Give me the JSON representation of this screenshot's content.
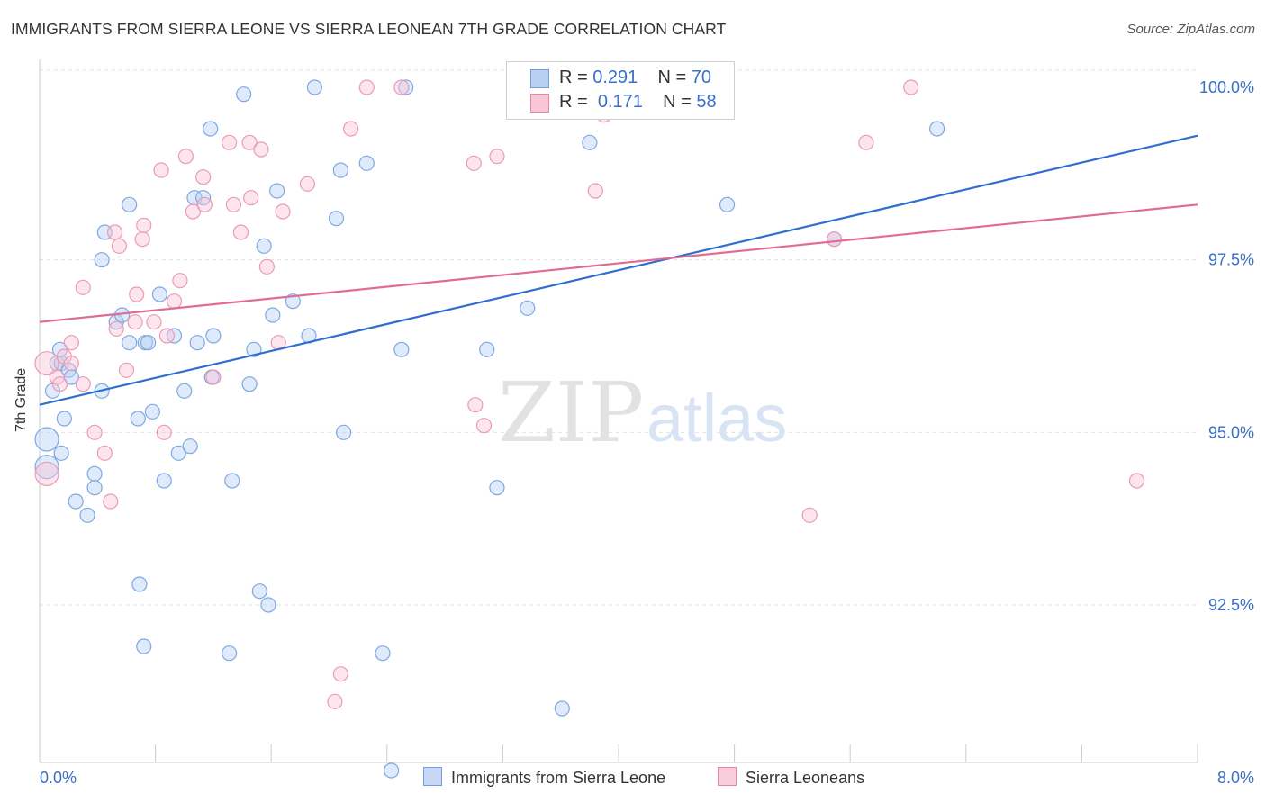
{
  "title": "IMMIGRANTS FROM SIERRA LEONE VS SIERRA LEONEAN 7TH GRADE CORRELATION CHART",
  "source": "Source: ZipAtlas.com",
  "watermark": {
    "part1": "ZIP",
    "part2": "atlas"
  },
  "legend": {
    "r_label": "R =",
    "n_label": "N =",
    "rows": [
      {
        "r": "0.291",
        "n": "70",
        "color": "#6f9fe0",
        "fill": "#b9d0f3"
      },
      {
        "r": "0.171",
        "n": "58",
        "color": "#e685a6",
        "fill": "#f8c6d6"
      }
    ]
  },
  "bottom_legend": [
    {
      "label": "Immigrants from Sierra Leone",
      "color": "#6f9fe0",
      "fill": "#c6d8f5"
    },
    {
      "label": "Sierra Leoneans",
      "color": "#e685a6",
      "fill": "#f9cddb"
    }
  ],
  "chart_data": {
    "type": "scatter",
    "title": "IMMIGRANTS FROM SIERRA LEONE VS SIERRA LEONEAN 7TH GRADE CORRELATION CHART",
    "xlabel": "",
    "ylabel": "7th Grade",
    "xlim": [
      0.0,
      8.0
    ],
    "ylim": [
      90.0,
      100.4
    ],
    "x_tick_labels": [
      "0.0%",
      "8.0%"
    ],
    "y_ticks": [
      92.5,
      95.0,
      97.5,
      100.0
    ],
    "y_tick_labels": [
      "92.5%",
      "95.0%",
      "97.5%",
      "100.0%"
    ],
    "grid": true,
    "series": [
      {
        "name": "Immigrants from Sierra Leone",
        "color": "#5b8fd9",
        "line_color": "#2f6fcf",
        "trend": {
          "x": [
            0.0,
            8.0
          ],
          "y": [
            95.4,
            99.3
          ]
        },
        "points": [
          [
            0.05,
            94.9
          ],
          [
            0.05,
            94.5
          ],
          [
            0.09,
            95.6
          ],
          [
            0.12,
            96.0
          ],
          [
            0.15,
            96.0
          ],
          [
            0.15,
            94.7
          ],
          [
            0.17,
            95.2
          ],
          [
            0.14,
            96.2
          ],
          [
            0.2,
            95.9
          ],
          [
            0.22,
            95.8
          ],
          [
            0.25,
            94.0
          ],
          [
            0.33,
            93.8
          ],
          [
            0.38,
            94.4
          ],
          [
            0.38,
            94.2
          ],
          [
            0.43,
            95.6
          ],
          [
            0.43,
            97.5
          ],
          [
            0.45,
            97.9
          ],
          [
            0.53,
            96.6
          ],
          [
            0.57,
            96.7
          ],
          [
            0.62,
            96.3
          ],
          [
            0.68,
            95.2
          ],
          [
            0.69,
            92.8
          ],
          [
            0.72,
            91.9
          ],
          [
            0.73,
            96.3
          ],
          [
            0.75,
            96.3
          ],
          [
            0.78,
            95.3
          ],
          [
            0.83,
            97.0
          ],
          [
            0.86,
            94.3
          ],
          [
            0.93,
            96.4
          ],
          [
            0.96,
            94.7
          ],
          [
            1.0,
            95.6
          ],
          [
            1.04,
            94.8
          ],
          [
            1.07,
            98.4
          ],
          [
            1.09,
            96.3
          ],
          [
            1.13,
            98.4
          ],
          [
            1.18,
            99.4
          ],
          [
            1.19,
            95.8
          ],
          [
            1.2,
            96.4
          ],
          [
            1.31,
            91.8
          ],
          [
            1.33,
            94.3
          ],
          [
            1.41,
            99.9
          ],
          [
            1.45,
            95.7
          ],
          [
            1.48,
            96.2
          ],
          [
            1.52,
            92.7
          ],
          [
            1.55,
            97.7
          ],
          [
            1.58,
            92.5
          ],
          [
            1.61,
            96.7
          ],
          [
            1.64,
            98.5
          ],
          [
            1.75,
            96.9
          ],
          [
            1.86,
            96.4
          ],
          [
            1.9,
            100.0
          ],
          [
            2.05,
            98.1
          ],
          [
            2.08,
            98.8
          ],
          [
            2.1,
            95.0
          ],
          [
            2.26,
            98.9
          ],
          [
            2.37,
            91.8
          ],
          [
            2.43,
            90.1
          ],
          [
            2.5,
            96.2
          ],
          [
            2.53,
            100.0
          ],
          [
            3.09,
            96.2
          ],
          [
            3.16,
            94.2
          ],
          [
            3.37,
            96.8
          ],
          [
            3.52,
            100.0
          ],
          [
            3.61,
            91.0
          ],
          [
            3.8,
            99.2
          ],
          [
            4.2,
            100.0
          ],
          [
            4.75,
            98.3
          ],
          [
            5.49,
            97.8
          ],
          [
            6.2,
            99.4
          ],
          [
            0.62,
            98.3
          ]
        ]
      },
      {
        "name": "Sierra Leoneans",
        "color": "#e57fa2",
        "line_color": "#e06c95",
        "trend": {
          "x": [
            0.0,
            8.0
          ],
          "y": [
            96.6,
            98.3
          ]
        },
        "points": [
          [
            0.05,
            94.4
          ],
          [
            0.05,
            96.0
          ],
          [
            0.12,
            95.8
          ],
          [
            0.14,
            95.7
          ],
          [
            0.17,
            96.1
          ],
          [
            0.22,
            96.3
          ],
          [
            0.22,
            96.0
          ],
          [
            0.3,
            95.7
          ],
          [
            0.38,
            95.0
          ],
          [
            0.45,
            94.7
          ],
          [
            0.49,
            94.0
          ],
          [
            0.52,
            97.9
          ],
          [
            0.55,
            97.7
          ],
          [
            0.53,
            96.5
          ],
          [
            0.6,
            95.9
          ],
          [
            0.66,
            96.6
          ],
          [
            0.67,
            97.0
          ],
          [
            0.71,
            97.8
          ],
          [
            0.72,
            98.0
          ],
          [
            0.79,
            96.6
          ],
          [
            0.84,
            98.8
          ],
          [
            0.86,
            95.0
          ],
          [
            0.88,
            96.4
          ],
          [
            0.93,
            96.9
          ],
          [
            0.97,
            97.2
          ],
          [
            1.01,
            99.0
          ],
          [
            1.06,
            98.2
          ],
          [
            1.14,
            98.3
          ],
          [
            1.13,
            98.7
          ],
          [
            1.2,
            95.8
          ],
          [
            1.31,
            99.2
          ],
          [
            1.34,
            98.3
          ],
          [
            1.39,
            97.9
          ],
          [
            1.45,
            99.2
          ],
          [
            1.46,
            98.4
          ],
          [
            1.53,
            99.1
          ],
          [
            1.57,
            97.4
          ],
          [
            1.65,
            96.3
          ],
          [
            1.68,
            98.2
          ],
          [
            1.85,
            98.6
          ],
          [
            2.04,
            91.1
          ],
          [
            2.08,
            91.5
          ],
          [
            2.15,
            99.4
          ],
          [
            2.26,
            100.0
          ],
          [
            2.5,
            100.0
          ],
          [
            3.0,
            98.9
          ],
          [
            3.01,
            95.4
          ],
          [
            3.07,
            95.1
          ],
          [
            3.16,
            99.0
          ],
          [
            3.84,
            98.5
          ],
          [
            3.9,
            99.6
          ],
          [
            4.2,
            100.0
          ],
          [
            5.32,
            93.8
          ],
          [
            5.49,
            97.8
          ],
          [
            5.71,
            99.2
          ],
          [
            6.02,
            100.0
          ],
          [
            7.58,
            94.3
          ],
          [
            0.3,
            97.1
          ]
        ]
      }
    ]
  }
}
